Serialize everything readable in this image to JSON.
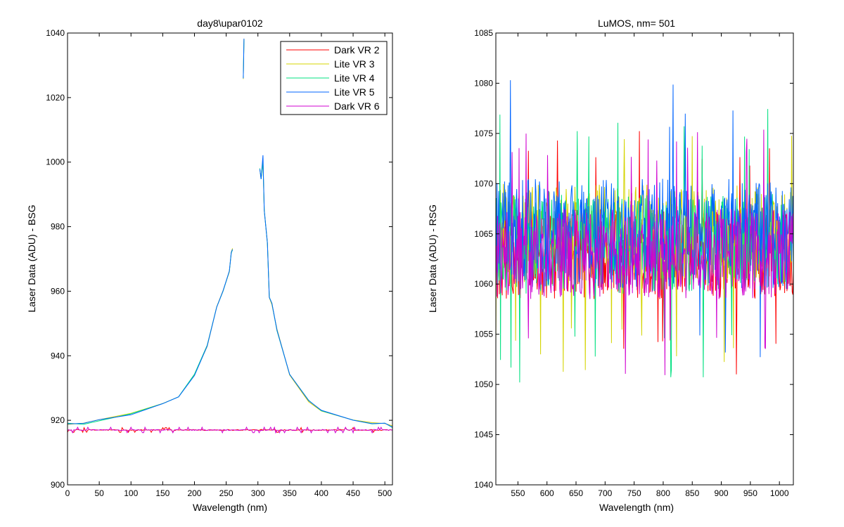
{
  "figure": {
    "background": "#ffffff"
  },
  "chart_data": [
    {
      "type": "line",
      "title": "day8\\upar0102",
      "xlabel": "Wavelength (nm)",
      "ylabel": "Laser Data (ADU) - BSG",
      "xlim": [
        0,
        512
      ],
      "ylim": [
        900,
        1040
      ],
      "xticks": [
        0,
        50,
        100,
        150,
        200,
        250,
        300,
        350,
        400,
        450,
        500
      ],
      "yticks": [
        900,
        920,
        940,
        960,
        980,
        1000,
        1020,
        1040
      ],
      "legend": {
        "position": "top-right",
        "entries": [
          "Dark VR 2",
          "Lite VR 3",
          "Lite VR 4",
          "Lite VR 5",
          "Dark VR 6"
        ]
      },
      "series": [
        {
          "name": "Dark VR 2",
          "color": "#ff0000",
          "shape": "flat-noise",
          "points": [
            [
              0,
              917
            ],
            [
              512,
              917
            ]
          ],
          "noise": 0.6
        },
        {
          "name": "Lite VR 3",
          "color": "#d4d400",
          "shape": "peak",
          "points": [
            [
              0,
              919
            ],
            [
              25,
              919
            ],
            [
              50,
              920
            ],
            [
              100,
              922
            ],
            [
              150,
              925
            ],
            [
              175,
              927
            ],
            [
              200,
              934
            ],
            [
              220,
              943
            ],
            [
              235,
              955
            ],
            [
              245,
              960
            ],
            [
              255,
              966
            ],
            [
              258,
              972
            ],
            [
              260,
              973
            ],
            [
              null,
              null
            ],
            [
              277,
              1026
            ],
            [
              278,
              1038
            ],
            [
              null,
              null
            ],
            [
              303,
              998
            ],
            [
              305,
              995
            ],
            [
              308,
              1000
            ],
            [
              310,
              985
            ],
            [
              315,
              975
            ],
            [
              318,
              958
            ],
            [
              322,
              956
            ],
            [
              330,
              948
            ],
            [
              350,
              934
            ],
            [
              380,
              926
            ],
            [
              400,
              923
            ],
            [
              450,
              920
            ],
            [
              480,
              919
            ],
            [
              500,
              919
            ],
            [
              512,
              918
            ]
          ]
        },
        {
          "name": "Lite VR 4",
          "color": "#00e080",
          "shape": "peak",
          "points": [
            [
              0,
              919
            ],
            [
              25,
              919
            ],
            [
              50,
              920
            ],
            [
              100,
              922
            ],
            [
              150,
              925
            ],
            [
              175,
              927
            ],
            [
              200,
              934
            ],
            [
              220,
              943
            ],
            [
              235,
              955
            ],
            [
              245,
              960
            ],
            [
              255,
              966
            ],
            [
              258,
              972
            ],
            [
              260,
              973
            ],
            [
              null,
              null
            ],
            [
              277,
              1026
            ],
            [
              278,
              1038
            ],
            [
              null,
              null
            ],
            [
              303,
              998
            ],
            [
              305,
              995
            ],
            [
              308,
              1000
            ],
            [
              310,
              985
            ],
            [
              315,
              975
            ],
            [
              318,
              958
            ],
            [
              322,
              956
            ],
            [
              330,
              948
            ],
            [
              350,
              934
            ],
            [
              380,
              926
            ],
            [
              400,
              923
            ],
            [
              450,
              920
            ],
            [
              480,
              919
            ],
            [
              500,
              919
            ],
            [
              512,
              918
            ]
          ]
        },
        {
          "name": "Lite VR 5",
          "color": "#0064ff",
          "shape": "peak",
          "points": [
            [
              0,
              919
            ],
            [
              25,
              919
            ],
            [
              50,
              920
            ],
            [
              100,
              922
            ],
            [
              150,
              925
            ],
            [
              175,
              927
            ],
            [
              200,
              934
            ],
            [
              220,
              943
            ],
            [
              235,
              955
            ],
            [
              245,
              960
            ],
            [
              255,
              966
            ],
            [
              258,
              972
            ],
            [
              260,
              973
            ],
            [
              null,
              null
            ],
            [
              277,
              1026
            ],
            [
              278,
              1038
            ],
            [
              null,
              null
            ],
            [
              303,
              998
            ],
            [
              305,
              995
            ],
            [
              308,
              1002
            ],
            [
              310,
              985
            ],
            [
              315,
              975
            ],
            [
              318,
              958
            ],
            [
              322,
              956
            ],
            [
              330,
              948
            ],
            [
              350,
              934
            ],
            [
              380,
              926
            ],
            [
              400,
              923
            ],
            [
              450,
              920
            ],
            [
              480,
              919
            ],
            [
              500,
              919
            ],
            [
              512,
              918
            ]
          ]
        },
        {
          "name": "Dark VR 6",
          "color": "#d000d0",
          "shape": "flat-noise",
          "points": [
            [
              0,
              917
            ],
            [
              512,
              917
            ]
          ],
          "noise": 0.7
        }
      ]
    },
    {
      "type": "line",
      "title": "LuMOS, nm= 501",
      "xlabel": "Wavelength (nm)",
      "ylabel": "Laser Data (ADU) - RSG",
      "xlim": [
        512,
        1024
      ],
      "ylim": [
        1040,
        1085
      ],
      "xticks": [
        550,
        600,
        650,
        700,
        750,
        800,
        850,
        900,
        950,
        1000
      ],
      "yticks": [
        1040,
        1045,
        1050,
        1055,
        1060,
        1065,
        1070,
        1075,
        1080,
        1085
      ],
      "series": [
        {
          "name": "Dark VR 2",
          "color": "#ff0000",
          "mean": 1063,
          "spread": 4.5
        },
        {
          "name": "Lite VR 3",
          "color": "#d4d400",
          "mean": 1065,
          "spread": 5
        },
        {
          "name": "Lite VR 4",
          "color": "#00e080",
          "mean": 1064,
          "spread": 5
        },
        {
          "name": "Lite VR 5",
          "color": "#0064ff",
          "mean": 1065,
          "spread": 5.5
        },
        {
          "name": "Dark VR 6",
          "color": "#d000d0",
          "mean": 1063,
          "spread": 4.5
        }
      ]
    }
  ]
}
